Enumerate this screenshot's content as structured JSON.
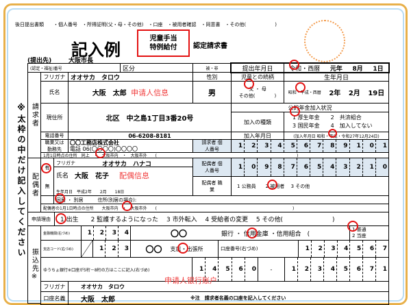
{
  "header": {
    "later_docs": "後日提出書類　　・個人番号　・所得証明(父・母・その他)　・口座　・被用者確認　・同意書　・その他(　　　　　　)",
    "title_box_1": "児童手当",
    "title_box_2": "特例給付",
    "title_suffix": "認定請求書",
    "example": "記入例",
    "submit_to_label": "(提出先)",
    "submit_to": "大阪市長"
  },
  "row1": {
    "cert_no": "(認定・福祉)番号",
    "kubun": "区分",
    "hi": "被・非",
    "date_label": "提出年月日",
    "era": "令和・西暦",
    "year": "元年",
    "month": "8月",
    "day": "1日"
  },
  "side_note": "※太枠の中だけ記入してください",
  "applicant": {
    "section": "請求者",
    "furigana_label": "フリガナ",
    "furigana": "オオサカ　タロウ",
    "gender_label": "性別",
    "relation_label": "児童との続柄",
    "birth_label": "生年月日",
    "name_label": "氏名",
    "name": "大阪　太郎",
    "name_note": "申请人信息",
    "gender": "男",
    "relation": "父 ・ 母",
    "relation_other": "その他(　　　　)",
    "birth_era": "昭和・平成・西暦",
    "birth_y": "2年",
    "birth_m": "2月",
    "birth_d": "19日",
    "address_label": "現住所",
    "address": "北区　中之島1丁目3番20号",
    "pension_label": "公的年金加入状況",
    "pension_type_label": "加入の種類",
    "pension_opt1": "1 厚生年金　　2　共済組合",
    "pension_opt2": "3 国民年金　　4　加入してない",
    "phone_label": "電話番号",
    "phone": "06-6208-8181",
    "join_label": "加入年月日",
    "join_date": "(加入年月日 昭和・平成・令和27年12月24日)",
    "job_label": "職業又は勤務先",
    "job": "〇〇工務店株式会社",
    "job_phone": "電話 06(〇〇〇〇)〇〇〇〇",
    "mynumber_label": "請求者 個人番号",
    "mynumber": [
      "1",
      "2",
      "3",
      "4",
      "5",
      "6",
      "7",
      "8",
      "9",
      "1",
      "0",
      "1"
    ],
    "jan1_address": "1月1日時点の住所　同上　・　大阪市内　・　大阪市外　　(　　　　　　　　　　　　　　　　　　　　　　　　　　　　　　　　　　)"
  },
  "spouse": {
    "section": "配偶者",
    "yes": "有",
    "no": "無",
    "furigana_label": "フリガナ",
    "furigana": "オオサカ　ハナコ",
    "name_label": "氏名",
    "name": "大阪　花子",
    "name_note": "配偶信息",
    "birth": "生年月日　平成2年　　2月　　18日",
    "mynumber_label": "配偶者 個人番号",
    "mynumber": [
      "1",
      "0",
      "9",
      "8",
      "7",
      "6",
      "5",
      "4",
      "3",
      "2",
      "1",
      "0"
    ],
    "job_label": "配偶者 職業",
    "job_opts": "1 公務員　　2 被用者　 3 その他",
    "living": "同居 ・ 別居　　　住所(別居の場合):",
    "jan1_address": "配偶者の1月1日時点の住所　　大阪市内　・　大阪市外　　(　　　　　　　　　　　　　　　　　　　　　　　　　　　　　　　　　)"
  },
  "reason": {
    "label": "申請理由",
    "options": "1 出生　　2 監護するようになった　 3 市外転入　 4 受給者の変更　 5 その他(　　　　　　　　)"
  },
  "bank": {
    "section": "振込先※",
    "inst_label": "金融機関(右づめ)",
    "inst_code": [
      "1",
      "2",
      "3",
      "4"
    ],
    "inst_name": "〇〇",
    "inst_type": "銀行 ・ 信用金庫 ・信用組合　(　　　　　　　)",
    "acct_type_1": "1 普通",
    "acct_type_2": "2 当座",
    "branch_label": "支店コード(右づめ)",
    "branch_code": [
      "1",
      "2",
      "3"
    ],
    "branch_name": "〇〇",
    "branch_type": "支店・出張所",
    "acct_no_label": "口座番号(右づめ)",
    "acct_no": [
      "1",
      "2",
      "3",
      "4",
      "5",
      "6",
      "7"
    ],
    "yucho_label": "ゆうちょ銀行※口座が5桁－8桁の方はここに記入(右づめ)",
    "yucho_1": [
      "1",
      "4",
      "5",
      "6",
      "0"
    ],
    "yucho_dash": "-",
    "yucho_2": [
      "1",
      "2",
      "3",
      "4",
      "5",
      "6",
      "7",
      "1"
    ],
    "furigana_label": "フリガナ",
    "furigana": "オオサカ　タロウ",
    "note_red": "申请人银行账户",
    "holder_label": "口座名義",
    "holder": "大阪　太郎",
    "holder_note": "※注　請求者名義の口座を記入してください"
  },
  "colors": {
    "frame": "#e8b04a",
    "inner_frame": "#b9dcf3",
    "mark": "#e31010",
    "note": "#f03c3c",
    "cell_bg": "#dde8f2",
    "stamp": "#f39a4a"
  }
}
